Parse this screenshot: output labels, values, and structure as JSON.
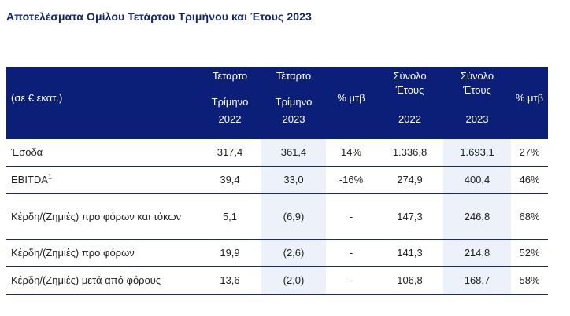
{
  "title": "Αποτελέσματα Ομίλου Τετάρτου Τριμήνου και Έτους 2023",
  "table": {
    "header": {
      "unit_label": "(σε € εκατ.)",
      "q4_2022": [
        "Τέταρτο",
        "Τρίμηνο",
        "2022"
      ],
      "q4_2023": [
        "Τέταρτο",
        "Τρίμηνο",
        "2023"
      ],
      "yoy_q": "% μτβ",
      "fy_2022": [
        "Σύνολο",
        "Έτους",
        "2022"
      ],
      "fy_2023": [
        "Σύνολο",
        "Έτους",
        "2023"
      ],
      "yoy_fy": "% μτβ"
    },
    "rows": [
      {
        "label": "Έσοδα",
        "sup": "",
        "q4_2022": "317,4",
        "q4_2023": "361,4",
        "yoy_q": "14%",
        "fy_2022": "1.336,8",
        "fy_2023": "1.693,1",
        "yoy_fy": "27%"
      },
      {
        "label": "EBITDA",
        "sup": "1",
        "q4_2022": "39,4",
        "q4_2023": "33,0",
        "yoy_q": "-16%",
        "fy_2022": "274,9",
        "fy_2023": "400,4",
        "yoy_fy": "46%"
      },
      {
        "label": "Κέρδη/(Ζημιές) προ φόρων και τόκων",
        "sup": "",
        "q4_2022": "5,1",
        "q4_2023": "(6,9)",
        "yoy_q": "-",
        "fy_2022": "147,3",
        "fy_2023": "246,8",
        "yoy_fy": "68%"
      },
      {
        "label": "Κέρδη/(Ζημιές) προ φόρων",
        "sup": "",
        "q4_2022": "19,9",
        "q4_2023": "(2,6)",
        "yoy_q": "-",
        "fy_2022": "141,3",
        "fy_2023": "214,8",
        "yoy_fy": "52%"
      },
      {
        "label": "Κέρδη/(Ζημιές) μετά από φόρους",
        "sup": "",
        "q4_2022": "13,6",
        "q4_2023": "(2,0)",
        "yoy_q": "-",
        "fy_2022": "106,8",
        "fy_2023": "168,7",
        "yoy_fy": "58%"
      }
    ]
  }
}
